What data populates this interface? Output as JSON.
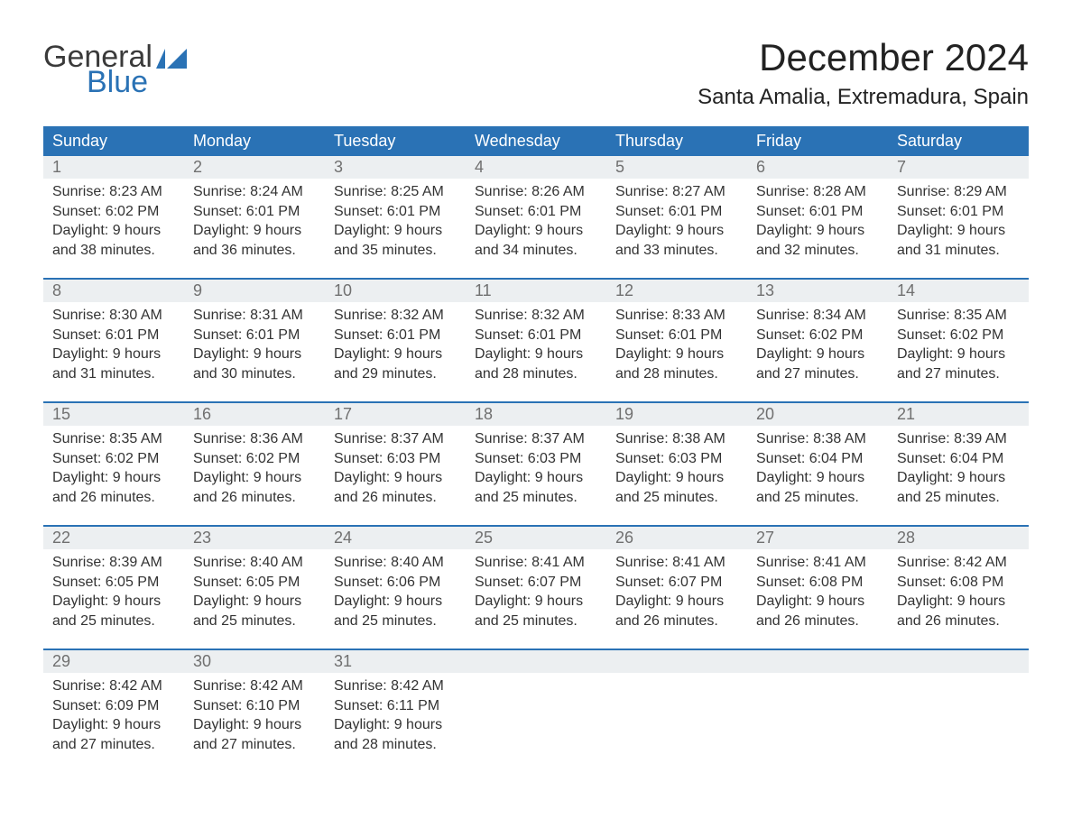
{
  "logo": {
    "word1": "General",
    "word2": "Blue",
    "flag_color": "#2a72b5"
  },
  "title": "December 2024",
  "location": "Santa Amalia, Extremadura, Spain",
  "colors": {
    "header_bg": "#2a72b5",
    "header_text": "#ffffff",
    "daynum_bg": "#eceff1",
    "daynum_text": "#707070",
    "body_text": "#333333",
    "rule": "#2a72b5"
  },
  "weekdays": [
    "Sunday",
    "Monday",
    "Tuesday",
    "Wednesday",
    "Thursday",
    "Friday",
    "Saturday"
  ],
  "weeks": [
    [
      {
        "n": "1",
        "sunrise": "Sunrise: 8:23 AM",
        "sunset": "Sunset: 6:02 PM",
        "day1": "Daylight: 9 hours",
        "day2": "and 38 minutes."
      },
      {
        "n": "2",
        "sunrise": "Sunrise: 8:24 AM",
        "sunset": "Sunset: 6:01 PM",
        "day1": "Daylight: 9 hours",
        "day2": "and 36 minutes."
      },
      {
        "n": "3",
        "sunrise": "Sunrise: 8:25 AM",
        "sunset": "Sunset: 6:01 PM",
        "day1": "Daylight: 9 hours",
        "day2": "and 35 minutes."
      },
      {
        "n": "4",
        "sunrise": "Sunrise: 8:26 AM",
        "sunset": "Sunset: 6:01 PM",
        "day1": "Daylight: 9 hours",
        "day2": "and 34 minutes."
      },
      {
        "n": "5",
        "sunrise": "Sunrise: 8:27 AM",
        "sunset": "Sunset: 6:01 PM",
        "day1": "Daylight: 9 hours",
        "day2": "and 33 minutes."
      },
      {
        "n": "6",
        "sunrise": "Sunrise: 8:28 AM",
        "sunset": "Sunset: 6:01 PM",
        "day1": "Daylight: 9 hours",
        "day2": "and 32 minutes."
      },
      {
        "n": "7",
        "sunrise": "Sunrise: 8:29 AM",
        "sunset": "Sunset: 6:01 PM",
        "day1": "Daylight: 9 hours",
        "day2": "and 31 minutes."
      }
    ],
    [
      {
        "n": "8",
        "sunrise": "Sunrise: 8:30 AM",
        "sunset": "Sunset: 6:01 PM",
        "day1": "Daylight: 9 hours",
        "day2": "and 31 minutes."
      },
      {
        "n": "9",
        "sunrise": "Sunrise: 8:31 AM",
        "sunset": "Sunset: 6:01 PM",
        "day1": "Daylight: 9 hours",
        "day2": "and 30 minutes."
      },
      {
        "n": "10",
        "sunrise": "Sunrise: 8:32 AM",
        "sunset": "Sunset: 6:01 PM",
        "day1": "Daylight: 9 hours",
        "day2": "and 29 minutes."
      },
      {
        "n": "11",
        "sunrise": "Sunrise: 8:32 AM",
        "sunset": "Sunset: 6:01 PM",
        "day1": "Daylight: 9 hours",
        "day2": "and 28 minutes."
      },
      {
        "n": "12",
        "sunrise": "Sunrise: 8:33 AM",
        "sunset": "Sunset: 6:01 PM",
        "day1": "Daylight: 9 hours",
        "day2": "and 28 minutes."
      },
      {
        "n": "13",
        "sunrise": "Sunrise: 8:34 AM",
        "sunset": "Sunset: 6:02 PM",
        "day1": "Daylight: 9 hours",
        "day2": "and 27 minutes."
      },
      {
        "n": "14",
        "sunrise": "Sunrise: 8:35 AM",
        "sunset": "Sunset: 6:02 PM",
        "day1": "Daylight: 9 hours",
        "day2": "and 27 minutes."
      }
    ],
    [
      {
        "n": "15",
        "sunrise": "Sunrise: 8:35 AM",
        "sunset": "Sunset: 6:02 PM",
        "day1": "Daylight: 9 hours",
        "day2": "and 26 minutes."
      },
      {
        "n": "16",
        "sunrise": "Sunrise: 8:36 AM",
        "sunset": "Sunset: 6:02 PM",
        "day1": "Daylight: 9 hours",
        "day2": "and 26 minutes."
      },
      {
        "n": "17",
        "sunrise": "Sunrise: 8:37 AM",
        "sunset": "Sunset: 6:03 PM",
        "day1": "Daylight: 9 hours",
        "day2": "and 26 minutes."
      },
      {
        "n": "18",
        "sunrise": "Sunrise: 8:37 AM",
        "sunset": "Sunset: 6:03 PM",
        "day1": "Daylight: 9 hours",
        "day2": "and 25 minutes."
      },
      {
        "n": "19",
        "sunrise": "Sunrise: 8:38 AM",
        "sunset": "Sunset: 6:03 PM",
        "day1": "Daylight: 9 hours",
        "day2": "and 25 minutes."
      },
      {
        "n": "20",
        "sunrise": "Sunrise: 8:38 AM",
        "sunset": "Sunset: 6:04 PM",
        "day1": "Daylight: 9 hours",
        "day2": "and 25 minutes."
      },
      {
        "n": "21",
        "sunrise": "Sunrise: 8:39 AM",
        "sunset": "Sunset: 6:04 PM",
        "day1": "Daylight: 9 hours",
        "day2": "and 25 minutes."
      }
    ],
    [
      {
        "n": "22",
        "sunrise": "Sunrise: 8:39 AM",
        "sunset": "Sunset: 6:05 PM",
        "day1": "Daylight: 9 hours",
        "day2": "and 25 minutes."
      },
      {
        "n": "23",
        "sunrise": "Sunrise: 8:40 AM",
        "sunset": "Sunset: 6:05 PM",
        "day1": "Daylight: 9 hours",
        "day2": "and 25 minutes."
      },
      {
        "n": "24",
        "sunrise": "Sunrise: 8:40 AM",
        "sunset": "Sunset: 6:06 PM",
        "day1": "Daylight: 9 hours",
        "day2": "and 25 minutes."
      },
      {
        "n": "25",
        "sunrise": "Sunrise: 8:41 AM",
        "sunset": "Sunset: 6:07 PM",
        "day1": "Daylight: 9 hours",
        "day2": "and 25 minutes."
      },
      {
        "n": "26",
        "sunrise": "Sunrise: 8:41 AM",
        "sunset": "Sunset: 6:07 PM",
        "day1": "Daylight: 9 hours",
        "day2": "and 26 minutes."
      },
      {
        "n": "27",
        "sunrise": "Sunrise: 8:41 AM",
        "sunset": "Sunset: 6:08 PM",
        "day1": "Daylight: 9 hours",
        "day2": "and 26 minutes."
      },
      {
        "n": "28",
        "sunrise": "Sunrise: 8:42 AM",
        "sunset": "Sunset: 6:08 PM",
        "day1": "Daylight: 9 hours",
        "day2": "and 26 minutes."
      }
    ],
    [
      {
        "n": "29",
        "sunrise": "Sunrise: 8:42 AM",
        "sunset": "Sunset: 6:09 PM",
        "day1": "Daylight: 9 hours",
        "day2": "and 27 minutes."
      },
      {
        "n": "30",
        "sunrise": "Sunrise: 8:42 AM",
        "sunset": "Sunset: 6:10 PM",
        "day1": "Daylight: 9 hours",
        "day2": "and 27 minutes."
      },
      {
        "n": "31",
        "sunrise": "Sunrise: 8:42 AM",
        "sunset": "Sunset: 6:11 PM",
        "day1": "Daylight: 9 hours",
        "day2": "and 28 minutes."
      },
      null,
      null,
      null,
      null
    ]
  ]
}
